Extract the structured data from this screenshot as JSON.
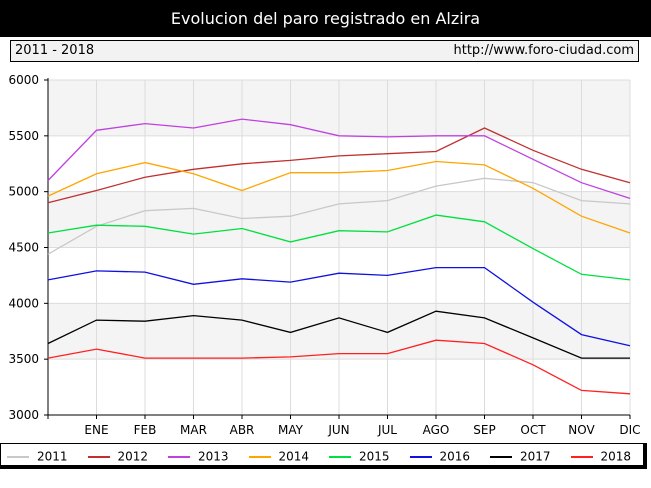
{
  "header": {
    "title": "Evolucion del paro registrado en Alzira",
    "range": "2011 - 2018",
    "url": "http://www.foro-ciudad.com"
  },
  "chart_data": {
    "type": "line",
    "title": "Evolucion del paro registrado en Alzira",
    "categories": [
      "",
      "ENE",
      "FEB",
      "MAR",
      "ABR",
      "MAY",
      "JUN",
      "JUL",
      "AGO",
      "SEP",
      "OCT",
      "NOV",
      "DIC"
    ],
    "ylim": [
      3000,
      6000
    ],
    "yticks": [
      3000,
      3500,
      4000,
      4500,
      5000,
      5500,
      6000
    ],
    "grid": true,
    "legend_position": "bottom",
    "series": [
      {
        "name": "2011",
        "color": "#c8c8c8",
        "values": [
          4440,
          4690,
          4830,
          4850,
          4760,
          4780,
          4890,
          4920,
          5050,
          5120,
          5080,
          4920,
          4890
        ]
      },
      {
        "name": "2012",
        "color": "#c03030",
        "values": [
          4900,
          5010,
          5130,
          5200,
          5250,
          5280,
          5320,
          5340,
          5360,
          5570,
          5370,
          5200,
          5080
        ]
      },
      {
        "name": "2013",
        "color": "#c040e0",
        "values": [
          5100,
          5550,
          5610,
          5570,
          5650,
          5600,
          5500,
          5490,
          5500,
          5500,
          5290,
          5080,
          4940
        ]
      },
      {
        "name": "2014",
        "color": "#ffa500",
        "values": [
          4960,
          5160,
          5260,
          5160,
          5010,
          5170,
          5170,
          5190,
          5270,
          5240,
          5030,
          4780,
          4630
        ]
      },
      {
        "name": "2015",
        "color": "#00e040",
        "values": [
          4630,
          4700,
          4690,
          4620,
          4670,
          4550,
          4650,
          4640,
          4790,
          4730,
          4490,
          4260,
          4210
        ]
      },
      {
        "name": "2016",
        "color": "#1010e0",
        "values": [
          4210,
          4290,
          4280,
          4170,
          4220,
          4190,
          4270,
          4250,
          4320,
          4320,
          4010,
          3720,
          3620
        ]
      },
      {
        "name": "2017",
        "color": "#000000",
        "values": [
          3640,
          3850,
          3840,
          3890,
          3850,
          3740,
          3870,
          3740,
          3930,
          3870,
          3690,
          3510,
          3510
        ]
      },
      {
        "name": "2018",
        "color": "#ff2020",
        "values": [
          3510,
          3590,
          3510,
          3510,
          3510,
          3520,
          3550,
          3550,
          3670,
          3640,
          3450,
          3220,
          3190
        ]
      }
    ]
  }
}
